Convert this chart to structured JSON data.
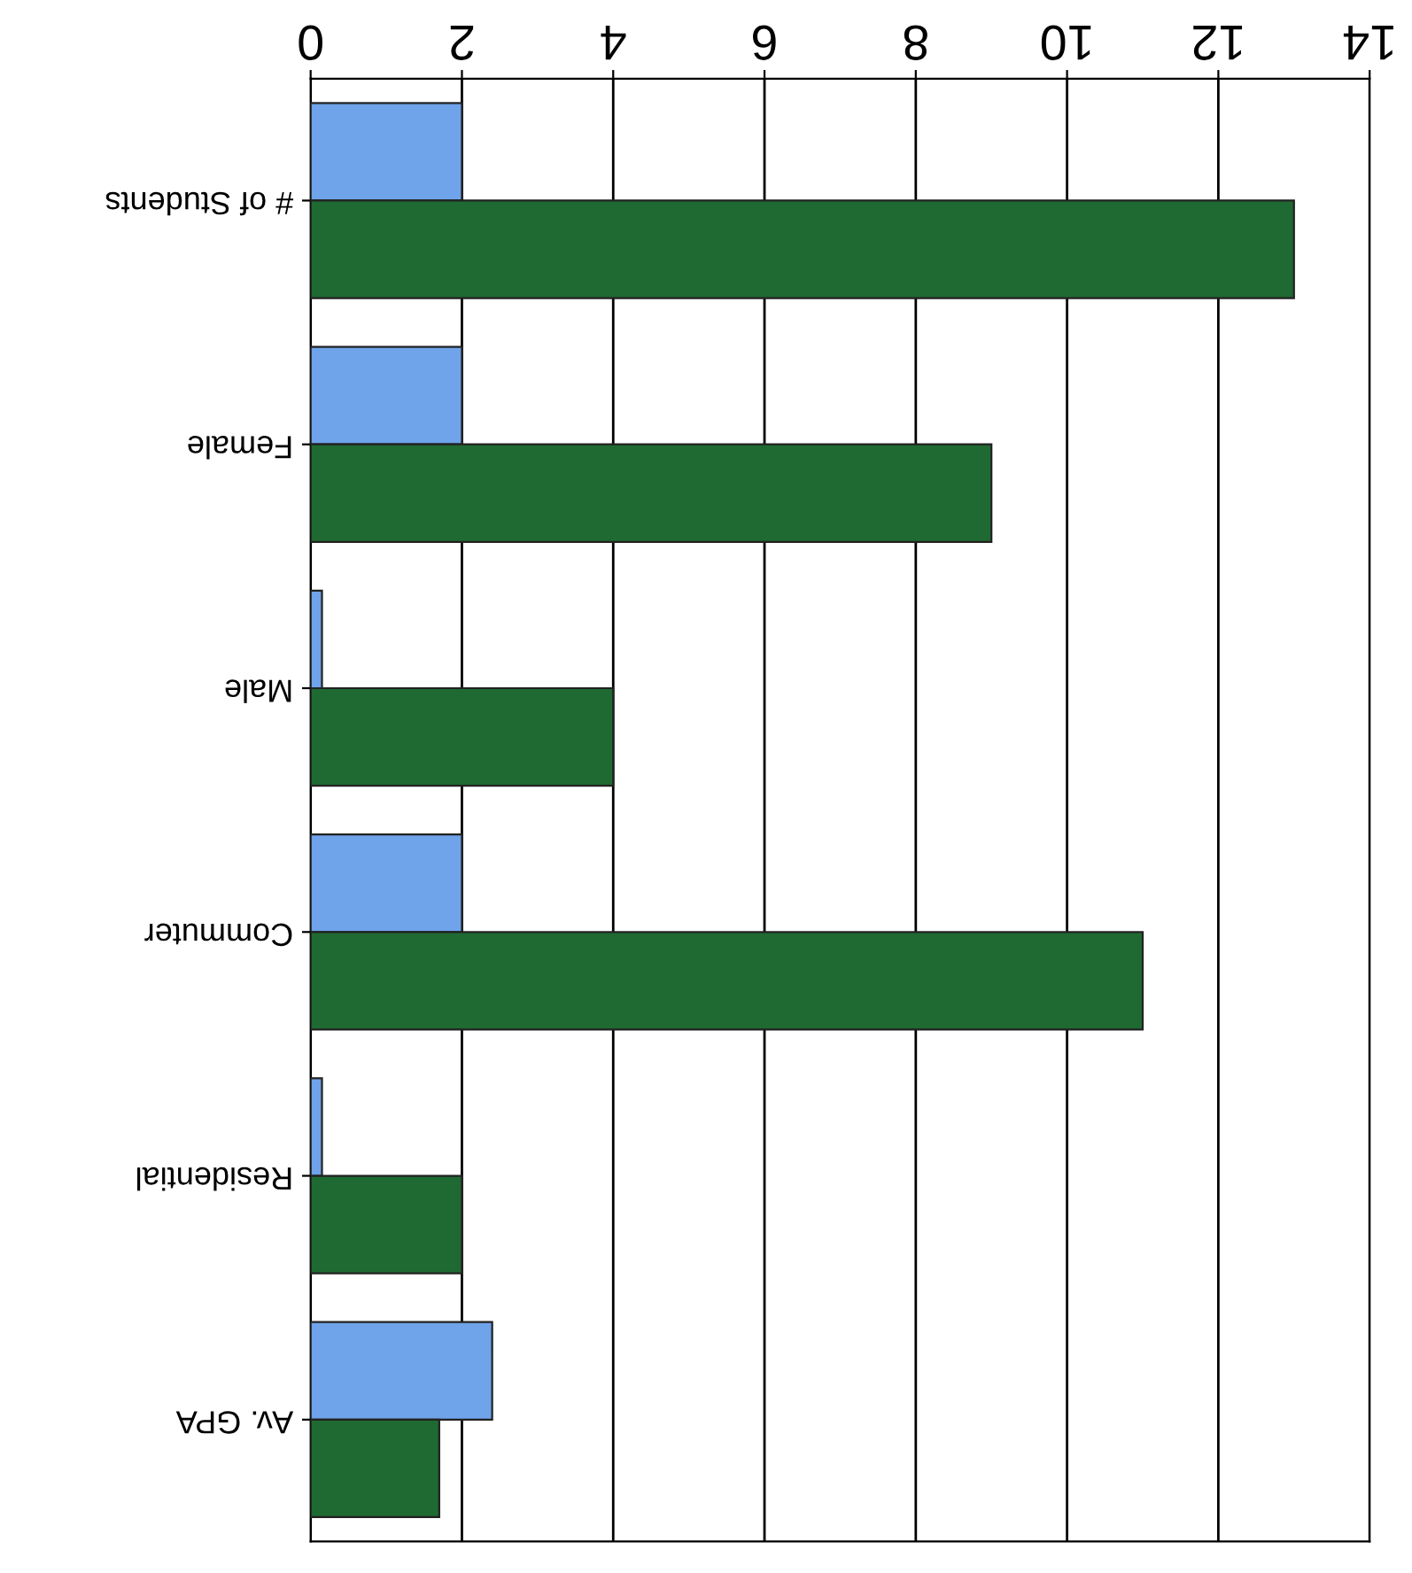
{
  "chart_data": {
    "type": "bar",
    "orientation": "horizontal",
    "categories": [
      "# of Students",
      "Female",
      "Male",
      "Commuter",
      "Residential",
      "Av. GPA"
    ],
    "series": [
      {
        "color": "#6fa3ea",
        "values": [
          2,
          2,
          0.15,
          2,
          0.15,
          2.4
        ]
      },
      {
        "color": "#1f6a32",
        "values": [
          13,
          9,
          4,
          11,
          2,
          1.7
        ]
      }
    ],
    "xlim": [
      0,
      14
    ],
    "xticks": [
      0,
      2,
      4,
      6,
      8,
      10,
      12,
      14
    ],
    "grid": "x"
  }
}
